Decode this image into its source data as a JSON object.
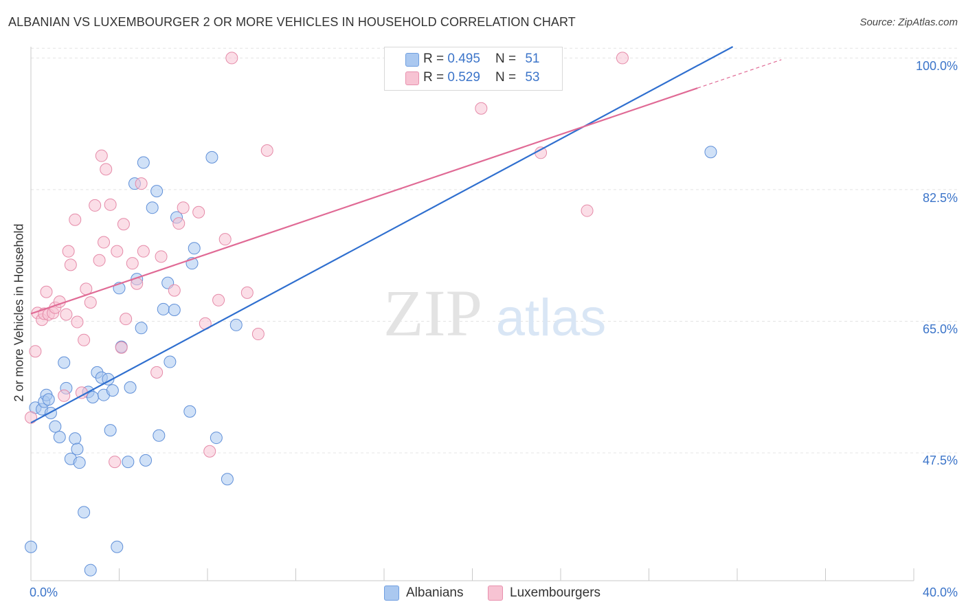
{
  "title": "ALBANIAN VS LUXEMBOURGER 2 OR MORE VEHICLES IN HOUSEHOLD CORRELATION CHART",
  "source": "Source: ZipAtlas.com",
  "watermark": {
    "zip": "ZIP",
    "atlas": "atlas"
  },
  "legend": {
    "rows": [
      {
        "r_label": "R =",
        "r_value": "0.495",
        "n_label": "N =",
        "n_value": "51",
        "color": "#aac8f0",
        "border": "#6f9ee0"
      },
      {
        "r_label": "R =",
        "r_value": "0.529",
        "n_label": "N =",
        "n_value": "53",
        "color": "#f7c3d3",
        "border": "#e890ad"
      }
    ]
  },
  "colors": {
    "albanian_fill": "#aac8f0",
    "albanian_stroke": "#5f8fd8",
    "albanian_line": "#2f6fcf",
    "lux_fill": "#f7c3d3",
    "lux_stroke": "#e58aa8",
    "lux_line": "#e06a95",
    "tick_text": "#3b74c9",
    "grid": "#e4e4e4"
  },
  "chart_data": {
    "type": "scatter",
    "title": "ALBANIAN VS LUXEMBOURGER 2 OR MORE VEHICLES IN HOUSEHOLD CORRELATION CHART",
    "xlabel": "",
    "ylabel": "2 or more Vehicles in Household",
    "xlim": [
      0,
      40
    ],
    "ylim": [
      30.5,
      101.5
    ],
    "x_tick_labels": [
      "0.0%",
      "40.0%"
    ],
    "y_ticks": [
      47.5,
      65.0,
      82.5,
      100.0
    ],
    "y_tick_labels": [
      "47.5%",
      "65.0%",
      "82.5%",
      "100.0%"
    ],
    "grid": true,
    "legend_position": "top-center",
    "series": [
      {
        "name": "Albanians",
        "trend": {
          "x": [
            0,
            31.8
          ],
          "y": [
            51.5,
            101.5
          ]
        },
        "points": [
          [
            0.2,
            53.5
          ],
          [
            0.5,
            53.3
          ],
          [
            0.6,
            54.3
          ],
          [
            0.7,
            55.2
          ],
          [
            0.8,
            54.6
          ],
          [
            0.9,
            52.8
          ],
          [
            1.1,
            51.0
          ],
          [
            1.3,
            49.6
          ],
          [
            1.5,
            59.5
          ],
          [
            1.6,
            56.1
          ],
          [
            1.8,
            46.7
          ],
          [
            2.0,
            49.4
          ],
          [
            2.1,
            48.0
          ],
          [
            2.2,
            46.2
          ],
          [
            2.4,
            39.6
          ],
          [
            2.6,
            55.6
          ],
          [
            2.7,
            31.9
          ],
          [
            2.8,
            54.9
          ],
          [
            3.0,
            58.2
          ],
          [
            3.2,
            57.5
          ],
          [
            3.3,
            55.2
          ],
          [
            3.5,
            57.3
          ],
          [
            3.6,
            50.5
          ],
          [
            3.7,
            55.8
          ],
          [
            3.9,
            35.0
          ],
          [
            4.0,
            69.4
          ],
          [
            4.1,
            61.6
          ],
          [
            4.4,
            46.3
          ],
          [
            4.5,
            56.2
          ],
          [
            4.7,
            83.3
          ],
          [
            4.8,
            70.6
          ],
          [
            5.0,
            64.1
          ],
          [
            5.1,
            86.1
          ],
          [
            5.2,
            46.5
          ],
          [
            5.5,
            80.1
          ],
          [
            5.7,
            82.3
          ],
          [
            5.8,
            49.8
          ],
          [
            6.0,
            66.6
          ],
          [
            6.2,
            70.1
          ],
          [
            6.3,
            59.6
          ],
          [
            6.5,
            66.5
          ],
          [
            6.6,
            78.8
          ],
          [
            7.2,
            53.0
          ],
          [
            7.3,
            72.7
          ],
          [
            7.4,
            74.7
          ],
          [
            8.2,
            86.8
          ],
          [
            8.4,
            49.5
          ],
          [
            8.9,
            44.0
          ],
          [
            9.3,
            64.5
          ],
          [
            0.0,
            35.0
          ],
          [
            30.8,
            87.5
          ]
        ]
      },
      {
        "name": "Luxembourgers",
        "trend": {
          "x": [
            0,
            30.2
          ],
          "y": [
            66.0,
            96.0
          ]
        },
        "points": [
          [
            0.0,
            52.2
          ],
          [
            0.2,
            61.0
          ],
          [
            0.3,
            66.1
          ],
          [
            0.5,
            65.2
          ],
          [
            0.6,
            66.0
          ],
          [
            0.7,
            68.9
          ],
          [
            0.8,
            65.9
          ],
          [
            1.0,
            66.1
          ],
          [
            1.1,
            66.8
          ],
          [
            1.3,
            67.6
          ],
          [
            1.5,
            55.1
          ],
          [
            1.6,
            65.9
          ],
          [
            1.7,
            74.3
          ],
          [
            1.8,
            72.5
          ],
          [
            2.0,
            78.5
          ],
          [
            2.1,
            64.9
          ],
          [
            2.3,
            55.5
          ],
          [
            2.4,
            62.5
          ],
          [
            2.5,
            69.3
          ],
          [
            2.7,
            67.5
          ],
          [
            2.9,
            80.4
          ],
          [
            3.1,
            73.1
          ],
          [
            3.2,
            87.0
          ],
          [
            3.3,
            75.5
          ],
          [
            3.4,
            85.2
          ],
          [
            3.6,
            80.5
          ],
          [
            3.8,
            46.3
          ],
          [
            3.9,
            74.3
          ],
          [
            4.2,
            77.9
          ],
          [
            4.3,
            65.3
          ],
          [
            4.6,
            72.7
          ],
          [
            4.8,
            70.0
          ],
          [
            5.1,
            74.3
          ],
          [
            5.0,
            83.3
          ],
          [
            5.7,
            58.2
          ],
          [
            5.9,
            73.6
          ],
          [
            6.5,
            69.1
          ],
          [
            6.7,
            78.0
          ],
          [
            6.9,
            80.1
          ],
          [
            7.6,
            79.5
          ],
          [
            7.9,
            64.7
          ],
          [
            8.1,
            47.7
          ],
          [
            8.5,
            67.8
          ],
          [
            8.8,
            75.9
          ],
          [
            9.1,
            100.0
          ],
          [
            9.8,
            68.8
          ],
          [
            10.3,
            63.3
          ],
          [
            10.7,
            87.7
          ],
          [
            20.4,
            93.3
          ],
          [
            23.1,
            87.4
          ],
          [
            25.2,
            79.7
          ],
          [
            26.8,
            100.0
          ],
          [
            4.1,
            61.5
          ]
        ]
      }
    ]
  },
  "x_tick_left": "0.0%",
  "x_tick_right": "40.0%",
  "bottom_legend": [
    {
      "label": "Albanians"
    },
    {
      "label": "Luxembourgers"
    }
  ]
}
